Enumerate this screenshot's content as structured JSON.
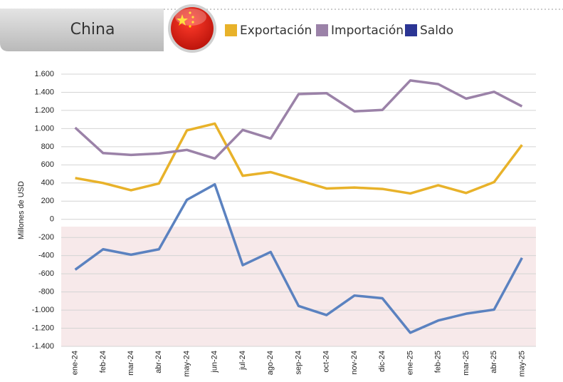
{
  "chart_data": {
    "type": "line",
    "title": "China",
    "y_label": "Millones de USD",
    "categories": [
      "ene-24",
      "feb-24",
      "mar-24",
      "abr-24",
      "may-24",
      "jun-24",
      "jul-24",
      "ago-24",
      "sep-24",
      "oct-24",
      "nov-24",
      "dic-24",
      "ene-25",
      "feb-25",
      "mar-25",
      "abr-25",
      "may-25"
    ],
    "series": [
      {
        "name": "Exportación",
        "color": "#e8b22a",
        "line_color": "#e8b22a",
        "values": [
          455,
          400,
          320,
          395,
          980,
          1055,
          480,
          520,
          430,
          340,
          350,
          335,
          285,
          375,
          290,
          410,
          820
        ]
      },
      {
        "name": "Importación",
        "color": "#9b82a8",
        "line_color": "#9b82a8",
        "values": [
          1010,
          730,
          710,
          725,
          765,
          670,
          985,
          890,
          1380,
          1390,
          1190,
          1205,
          1530,
          1490,
          1330,
          1405,
          1245
        ]
      },
      {
        "name": "Saldo",
        "color": "#2b3594",
        "line_color": "#5b82c0",
        "values": [
          -555,
          -330,
          -390,
          -330,
          215,
          385,
          -505,
          -360,
          -955,
          -1055,
          -840,
          -870,
          -1250,
          -1115,
          -1040,
          -995,
          -425
        ]
      }
    ],
    "ylim": [
      -1400,
      1600
    ],
    "yticks": [
      {
        "value": -1400,
        "label": "-1.400"
      },
      {
        "value": -1200,
        "label": "-1.200"
      },
      {
        "value": -1000,
        "label": "-1.000"
      },
      -800,
      -600,
      -400,
      -200,
      0,
      200,
      400,
      600,
      800,
      {
        "value": 1000,
        "label": "1.000"
      },
      {
        "value": 1200,
        "label": "1.200"
      },
      {
        "value": 1400,
        "label": "1.400"
      },
      {
        "value": 1600,
        "label": "1.600"
      }
    ],
    "grid": true
  }
}
